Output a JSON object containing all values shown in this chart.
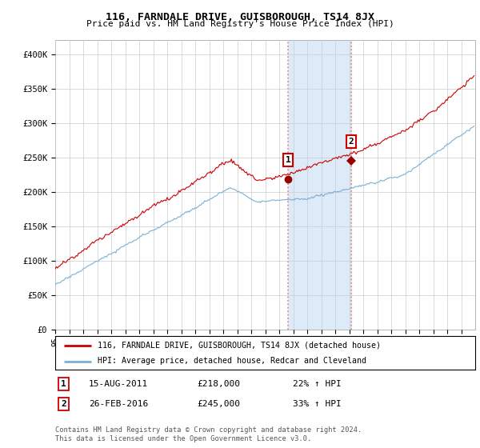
{
  "title": "116, FARNDALE DRIVE, GUISBOROUGH, TS14 8JX",
  "subtitle": "Price paid vs. HM Land Registry's House Price Index (HPI)",
  "ylim": [
    0,
    420000
  ],
  "yticks": [
    0,
    50000,
    100000,
    150000,
    200000,
    250000,
    300000,
    350000,
    400000
  ],
  "ytick_labels": [
    "£0",
    "£50K",
    "£100K",
    "£150K",
    "£200K",
    "£250K",
    "£300K",
    "£350K",
    "£400K"
  ],
  "year_start": 1995,
  "year_end": 2025,
  "hpi_color": "#7ab0d4",
  "price_color": "#cc0000",
  "marker1_year": 2011.625,
  "marker1_price": 218000,
  "marker2_year": 2016.15,
  "marker2_price": 245000,
  "shade_color": "#ddeaf7",
  "dashed_color": "#e88080",
  "legend_label1": "116, FARNDALE DRIVE, GUISBOROUGH, TS14 8JX (detached house)",
  "legend_label2": "HPI: Average price, detached house, Redcar and Cleveland",
  "table_row1_num": "1",
  "table_row1_date": "15-AUG-2011",
  "table_row1_price": "£218,000",
  "table_row1_hpi": "22% ↑ HPI",
  "table_row2_num": "2",
  "table_row2_date": "26-FEB-2016",
  "table_row2_price": "£245,000",
  "table_row2_hpi": "33% ↑ HPI",
  "footnote": "Contains HM Land Registry data © Crown copyright and database right 2024.\nThis data is licensed under the Open Government Licence v3.0.",
  "bg_color": "#ffffff",
  "grid_color": "#cccccc"
}
